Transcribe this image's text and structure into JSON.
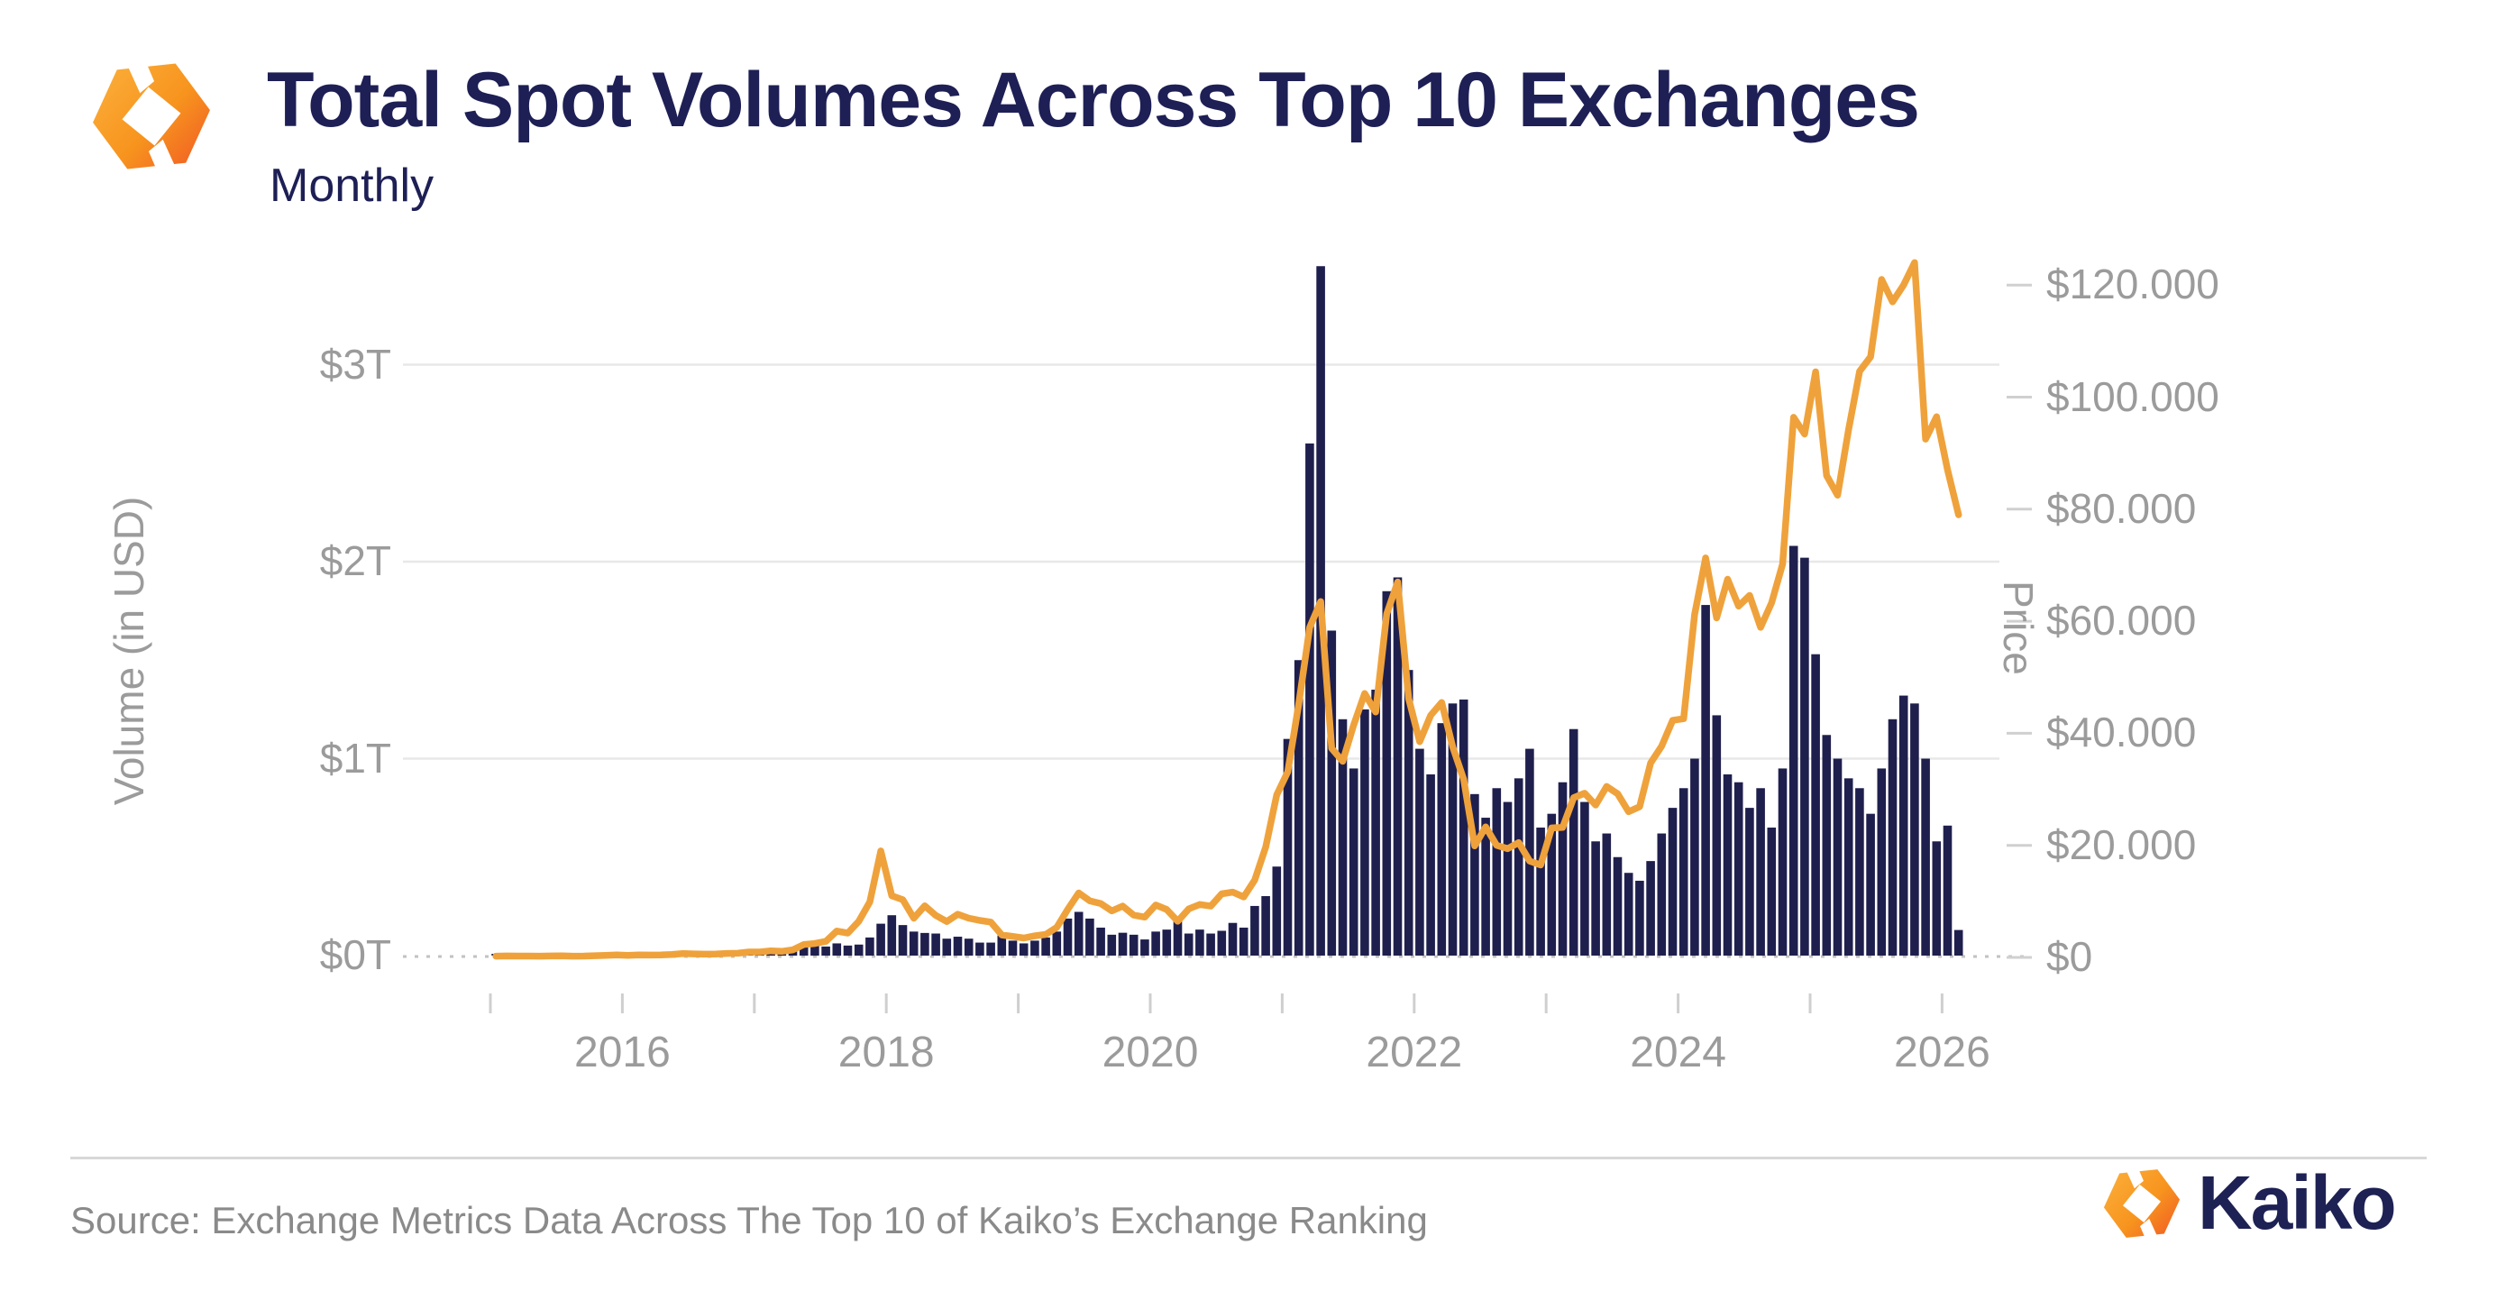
{
  "header": {
    "title": "Total Spot Volumes Across Top 10 Exchanges",
    "subtitle": "Monthly"
  },
  "footer": {
    "source": "Source: Exchange Metrics Data Across The Top 10 of Kaiko’s Exchange Ranking",
    "brand_wordmark": "Kaiko"
  },
  "colors": {
    "bar_navy": "#1f1f4e",
    "line_orange": "#efa23b",
    "title_navy": "#1d1f55",
    "axis_gray": "#9b9b9b",
    "gridline_gray": "#e8e8e8",
    "dotted_baseline_gray": "#c2c2c2",
    "logo_orange_light": "#fbb03c",
    "logo_orange_dark": "#f47b20"
  },
  "chart_data": {
    "type": "bar",
    "title": "Total Spot Volumes Across Top 10 Exchanges",
    "subtitle": "Monthly",
    "x_start": "2015-01",
    "x_end": "2026-02",
    "x_axis": {
      "labels": [
        "2016",
        "2018",
        "2020",
        "2022",
        "2024",
        "2026"
      ],
      "tick_years": [
        2015,
        2016,
        2017,
        2018,
        2019,
        2020,
        2021,
        2022,
        2023,
        2024,
        2025,
        2026
      ]
    },
    "left_axis": {
      "title": "Volume (in USD)",
      "ticks": [
        "$0T",
        "$1T",
        "$2T",
        "$3T"
      ],
      "tick_values_trillions": [
        0,
        1,
        2,
        3
      ],
      "range_trillions": [
        0,
        3.6
      ],
      "grid": true
    },
    "right_axis": {
      "title": "Price",
      "ticks": [
        "$0",
        "$20.000",
        "$40.000",
        "$60.000",
        "$80.000",
        "$100.000",
        "$120.000"
      ],
      "tick_values_usd": [
        0,
        20000,
        40000,
        60000,
        80000,
        100000,
        120000
      ],
      "range_usd": [
        0,
        129000
      ],
      "grid": false
    },
    "series": [
      {
        "name": "Total spot volume",
        "kind": "bar",
        "axis": "left",
        "unit": "USD trillions per month",
        "color": "#1f1f4e",
        "values": [
          0.005,
          0.005,
          0.006,
          0.005,
          0.005,
          0.006,
          0.007,
          0.008,
          0.007,
          0.009,
          0.011,
          0.014,
          0.014,
          0.013,
          0.012,
          0.012,
          0.016,
          0.021,
          0.017,
          0.013,
          0.012,
          0.013,
          0.018,
          0.025,
          0.026,
          0.023,
          0.026,
          0.031,
          0.046,
          0.056,
          0.046,
          0.062,
          0.051,
          0.056,
          0.092,
          0.162,
          0.205,
          0.155,
          0.122,
          0.115,
          0.112,
          0.086,
          0.096,
          0.086,
          0.066,
          0.066,
          0.102,
          0.076,
          0.062,
          0.076,
          0.092,
          0.122,
          0.188,
          0.222,
          0.188,
          0.142,
          0.106,
          0.116,
          0.106,
          0.082,
          0.122,
          0.132,
          0.188,
          0.112,
          0.132,
          0.112,
          0.126,
          0.166,
          0.142,
          0.252,
          0.302,
          0.452,
          1.1,
          1.5,
          2.6,
          3.5,
          1.65,
          1.2,
          0.95,
          1.25,
          1.35,
          1.85,
          1.92,
          1.45,
          1.05,
          0.92,
          1.18,
          1.28,
          1.3,
          0.82,
          0.7,
          0.85,
          0.78,
          0.9,
          1.05,
          0.65,
          0.72,
          0.88,
          1.15,
          0.78,
          0.58,
          0.62,
          0.5,
          0.42,
          0.38,
          0.48,
          0.62,
          0.75,
          0.85,
          1.0,
          1.78,
          1.22,
          0.92,
          0.88,
          0.75,
          0.85,
          0.65,
          0.95,
          2.08,
          2.02,
          1.53,
          1.12,
          1.0,
          0.9,
          0.85,
          0.72,
          0.95,
          1.2,
          1.32,
          1.28,
          1.0,
          0.58,
          0.66,
          0.13
        ]
      },
      {
        "name": "Price",
        "kind": "line",
        "axis": "right",
        "unit": "USD",
        "color": "#efa23b",
        "values": [
          220,
          250,
          245,
          235,
          230,
          260,
          285,
          230,
          235,
          310,
          375,
          430,
          370,
          440,
          415,
          450,
          530,
          670,
          625,
          575,
          610,
          700,
          745,
          960,
          970,
          1180,
          1080,
          1350,
          2300,
          2480,
          2870,
          4700,
          4340,
          6450,
          9900,
          19000,
          11000,
          10300,
          7000,
          9200,
          7500,
          6400,
          7700,
          7000,
          6600,
          6300,
          4000,
          3750,
          3460,
          3850,
          4100,
          5350,
          8580,
          11500,
          10100,
          9600,
          8300,
          9150,
          7550,
          7200,
          9350,
          8550,
          6450,
          8650,
          9450,
          9150,
          11350,
          11650,
          10800,
          13800,
          19700,
          29000,
          33100,
          45200,
          58900,
          63500,
          37300,
          35000,
          41500,
          47100,
          43800,
          61300,
          67000,
          46200,
          38500,
          43200,
          45500,
          37600,
          31800,
          19900,
          23300,
          20000,
          19400,
          20500,
          17200,
          16500,
          23100,
          23200,
          28500,
          29300,
          27200,
          30500,
          29200,
          26000,
          26900,
          34700,
          37700,
          42300,
          42600,
          61200,
          71300,
          60600,
          67500,
          62700,
          64600,
          58900,
          63300,
          70200,
          96400,
          93400,
          104500,
          86000,
          82500,
          94200,
          104600,
          107200,
          121000,
          117000,
          120000,
          124000,
          92500,
          96500,
          87000,
          79000
        ]
      }
    ],
    "legend": "none"
  }
}
